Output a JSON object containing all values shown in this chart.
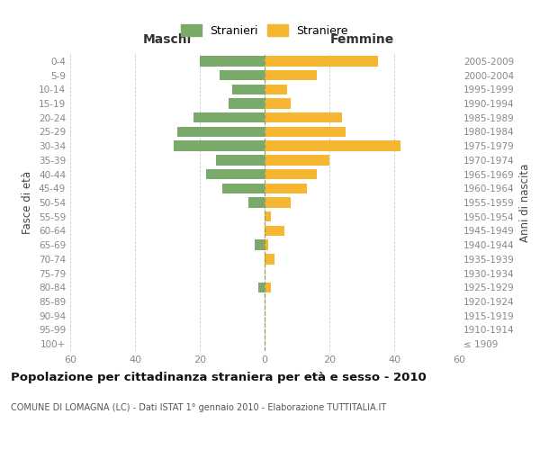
{
  "age_groups": [
    "100+",
    "95-99",
    "90-94",
    "85-89",
    "80-84",
    "75-79",
    "70-74",
    "65-69",
    "60-64",
    "55-59",
    "50-54",
    "45-49",
    "40-44",
    "35-39",
    "30-34",
    "25-29",
    "20-24",
    "15-19",
    "10-14",
    "5-9",
    "0-4"
  ],
  "birth_years": [
    "≤ 1909",
    "1910-1914",
    "1915-1919",
    "1920-1924",
    "1925-1929",
    "1930-1934",
    "1935-1939",
    "1940-1944",
    "1945-1949",
    "1950-1954",
    "1955-1959",
    "1960-1964",
    "1965-1969",
    "1970-1974",
    "1975-1979",
    "1980-1984",
    "1985-1989",
    "1990-1994",
    "1995-1999",
    "2000-2004",
    "2005-2009"
  ],
  "maschi": [
    0,
    0,
    0,
    0,
    2,
    0,
    0,
    3,
    0,
    0,
    5,
    13,
    18,
    15,
    28,
    27,
    22,
    11,
    10,
    14,
    20
  ],
  "femmine": [
    0,
    0,
    0,
    0,
    2,
    0,
    3,
    1,
    6,
    2,
    8,
    13,
    16,
    20,
    42,
    25,
    24,
    8,
    7,
    16,
    35
  ],
  "color_maschi": "#7aaa6a",
  "color_femmine": "#f5b731",
  "title": "Popolazione per cittadinanza straniera per età e sesso - 2010",
  "subtitle": "COMUNE DI LOMAGNA (LC) - Dati ISTAT 1° gennaio 2010 - Elaborazione TUTTITALIA.IT",
  "label_maschi": "Maschi",
  "label_femmine": "Femmine",
  "ylabel_left": "Fasce di età",
  "ylabel_right": "Anni di nascita",
  "legend_maschi": "Stranieri",
  "legend_femmine": "Straniere",
  "xlim": 60,
  "grid_color": "#cccccc",
  "center_line_color": "#999966",
  "tick_color": "#888888"
}
